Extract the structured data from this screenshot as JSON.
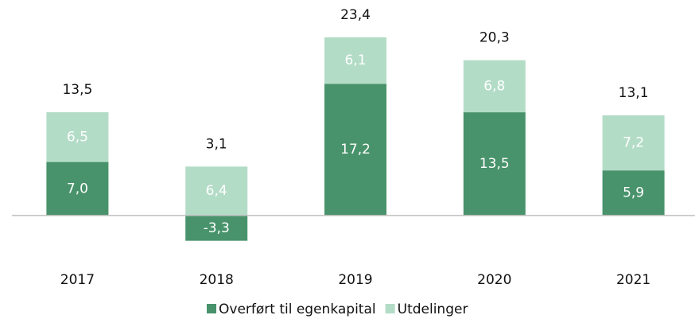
{
  "chart_data": {
    "type": "stacked_bar",
    "categories": [
      "2017",
      "2018",
      "2019",
      "2020",
      "2021"
    ],
    "series": [
      {
        "name": "Overført til egenkapital",
        "color": "#48936b",
        "values": [
          7.0,
          -3.3,
          17.2,
          13.5,
          5.9
        ],
        "value_labels": [
          "7,0",
          "-3,3",
          "17,2",
          "13,5",
          "5,9"
        ]
      },
      {
        "name": "Utdelinger",
        "color": "#b3dcc7",
        "values": [
          6.5,
          6.4,
          6.1,
          6.8,
          7.2
        ],
        "value_labels": [
          "6,5",
          "6,4",
          "6,1",
          "6,8",
          "7,2"
        ]
      }
    ],
    "totals": {
      "values": [
        13.5,
        3.1,
        23.4,
        20.3,
        13.1
      ],
      "value_labels": [
        "13,5",
        "3,1",
        "23,4",
        "20,3",
        "13,1"
      ]
    },
    "ylim": [
      -5,
      25
    ],
    "legend": "bottom"
  }
}
